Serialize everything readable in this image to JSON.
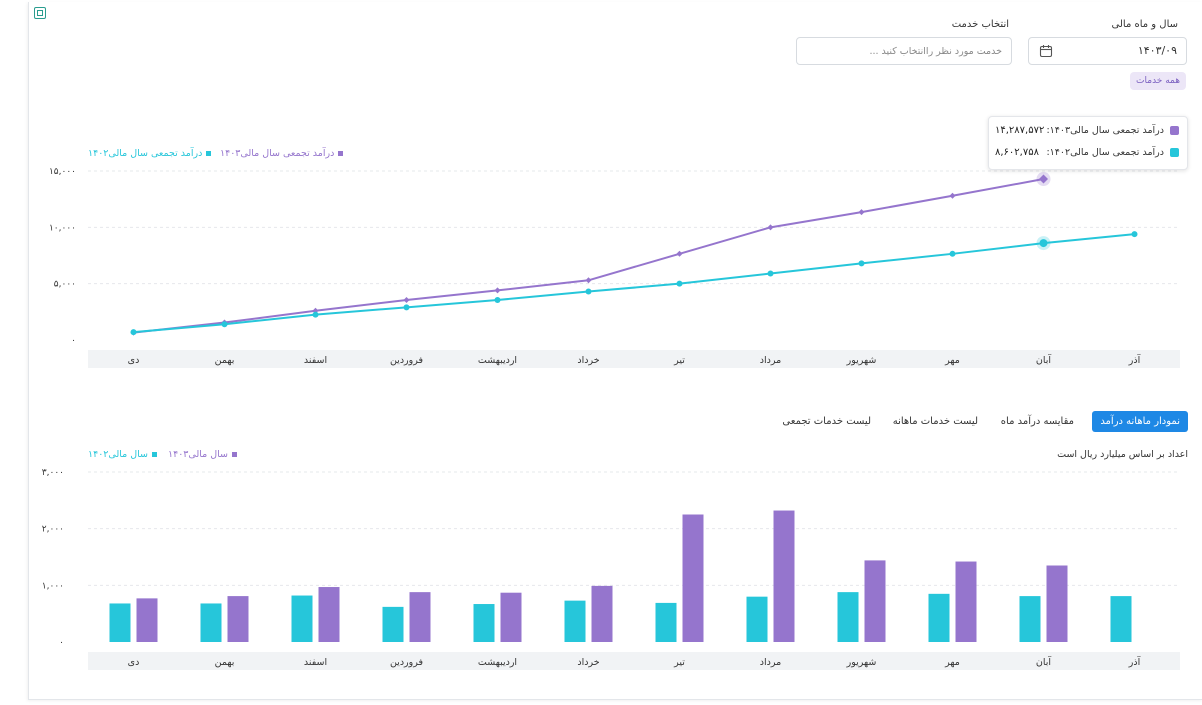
{
  "filters": {
    "fiscal_label": "سال و ماه مالی",
    "fiscal_value": "۱۴۰۳/۰۹",
    "service_label": "انتخاب خدمت",
    "service_placeholder": "خدمت مورد نظر راانتخاب کنید ...",
    "all_services_chip": "همه خدمات"
  },
  "tooltip": {
    "row1_label": "درآمد تجمعی سال مالی۱۴۰۳:",
    "row1_value": "۱۴,۲۸۷,۵۷۲",
    "row2_label": "درآمد تجمعی سال مالی۱۴۰۲:",
    "row2_value": "۸,۶۰۲,۷۵۸"
  },
  "tabs": [
    {
      "label": "نمودار ماهانه درآمد",
      "active": true
    },
    {
      "label": "مقایسه درآمد ماه",
      "active": false
    },
    {
      "label": "لیست خدمات ماهانه",
      "active": false
    },
    {
      "label": "لیست خدمات تجمعی",
      "active": false
    }
  ],
  "bar_note": "اعداد بر اساس میلیارد ریال است",
  "colors": {
    "purple": "#9575cd",
    "cyan": "#26c6da",
    "tab_blue": "#1e88e5"
  },
  "chart_data": [
    {
      "type": "line",
      "categories": [
        "دی",
        "بهمن",
        "اسفند",
        "فروردین",
        "اردیبهشت",
        "خرداد",
        "تیر",
        "مرداد",
        "شهریور",
        "مهر",
        "آبان",
        "آذر"
      ],
      "series": [
        {
          "name": "درآمد تجمعی سال مالی۱۴۰۳",
          "color": "#9575cd",
          "values": [
            650,
            1550,
            2600,
            3550,
            4400,
            5300,
            7650,
            10000,
            11350,
            12800,
            14287.572,
            null
          ]
        },
        {
          "name": "درآمد تجمعی سال مالی۱۴۰۲",
          "color": "#26c6da",
          "values": [
            700,
            1400,
            2250,
            2900,
            3550,
            4300,
            5000,
            5900,
            6800,
            7650,
            8602.758,
            9400
          ]
        }
      ],
      "yticks": [
        "۰",
        "۵,۰۰۰",
        "۱۰,۰۰۰",
        "۱۵,۰۰۰"
      ],
      "ylim": [
        0,
        15000
      ],
      "legend": "top-left",
      "grid": true
    },
    {
      "type": "bar",
      "categories": [
        "دی",
        "بهمن",
        "اسفند",
        "فروردین",
        "اردیبهشت",
        "خرداد",
        "تیر",
        "مرداد",
        "شهریور",
        "مهر",
        "آبان",
        "آذر"
      ],
      "series": [
        {
          "name": "سال مالی۱۴۰۲",
          "color": "#26c6da",
          "values": [
            680,
            680,
            820,
            620,
            670,
            730,
            690,
            800,
            880,
            850,
            810,
            810
          ]
        },
        {
          "name": "سال مالی۱۴۰۳",
          "color": "#9575cd",
          "values": [
            770,
            810,
            970,
            880,
            870,
            990,
            2250,
            2320,
            1440,
            1420,
            1350,
            null
          ]
        }
      ],
      "yticks": [
        "۰",
        "۱,۰۰۰",
        "۲,۰۰۰",
        "۳,۰۰۰"
      ],
      "ylim": [
        0,
        3000
      ],
      "legend": "top-left",
      "grid": true
    }
  ]
}
